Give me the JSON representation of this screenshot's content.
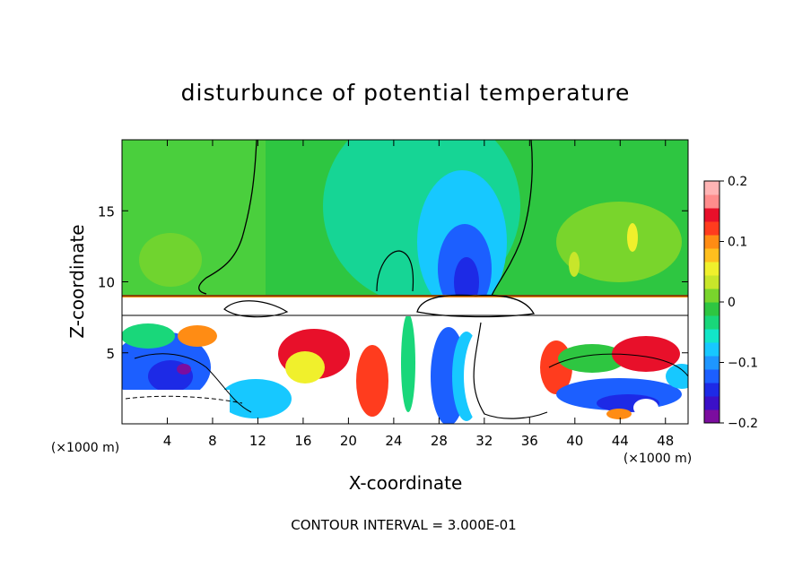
{
  "chart_data": {
    "type": "heatmap",
    "title": "disturbunce of potential temperature",
    "xlabel": "X-coordinate",
    "ylabel": "Z-coordinate",
    "x_unit_left": "(×1000 m)",
    "x_unit_right": "(×1000 m)",
    "footer": "CONTOUR INTERVAL = 3.000E-01",
    "xlim": [
      0,
      50
    ],
    "ylim": [
      0,
      20
    ],
    "x_ticks": [
      4,
      8,
      12,
      16,
      20,
      24,
      28,
      32,
      36,
      40,
      44,
      48
    ],
    "x_tick_labels": [
      "4",
      "8",
      "12",
      "16",
      "20",
      "24",
      "28",
      "32",
      "36",
      "40",
      "44",
      "48"
    ],
    "y_ticks": [
      5,
      10,
      15
    ],
    "y_tick_labels": [
      "5",
      "10",
      "15"
    ],
    "colorbar": {
      "min": -0.2,
      "max": 0.2,
      "ticks": [
        0.2,
        0.1,
        0,
        -0.1,
        -0.2
      ],
      "tick_labels": [
        "0.2",
        "0.1",
        "0",
        "−0.1",
        "−0.2"
      ],
      "colors": [
        "#7b0d9f",
        "#3b10c8",
        "#1d2ae6",
        "#1c5fff",
        "#1e96ff",
        "#17c8ff",
        "#12e6c8",
        "#19d77a",
        "#2ec641",
        "#79d52c",
        "#c8e62a",
        "#f0f02c",
        "#ffbf1e",
        "#ff8c14",
        "#ff3c1e",
        "#e8102a",
        "#ff8c8c",
        "#ffb4b4"
      ]
    },
    "band_levels": {
      "stratosphere_top_z": 20,
      "band1_z": [
        8.9,
        9.0
      ],
      "band2_z": [
        7.6,
        7.8
      ]
    }
  }
}
